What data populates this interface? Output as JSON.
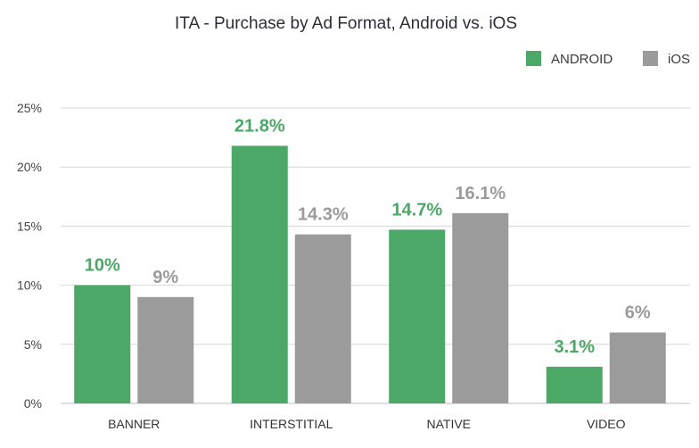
{
  "chart_data": {
    "type": "bar",
    "title": "ITA - Purchase by Ad Format, Android vs. iOS",
    "categories": [
      "BANNER",
      "INTERSTITIAL",
      "NATIVE",
      "VIDEO"
    ],
    "series": [
      {
        "name": "ANDROID",
        "color": "#4ca866",
        "values": [
          10,
          21.8,
          14.7,
          3.1
        ],
        "labels": [
          "10%",
          "21.8%",
          "14.7%",
          "3.1%"
        ]
      },
      {
        "name": "iOS",
        "color": "#9b9b9b",
        "values": [
          9,
          14.3,
          16.1,
          6
        ],
        "labels": [
          "9%",
          "14.3%",
          "16.1%",
          "6%"
        ]
      }
    ],
    "ylim": [
      0,
      25
    ],
    "yticks": [
      0,
      5,
      10,
      15,
      20,
      25
    ],
    "ytick_labels": [
      "0%",
      "5%",
      "10%",
      "15%",
      "20%",
      "25%"
    ],
    "xlabel": "",
    "ylabel": "",
    "grid": true,
    "legend_position": "top-right"
  }
}
